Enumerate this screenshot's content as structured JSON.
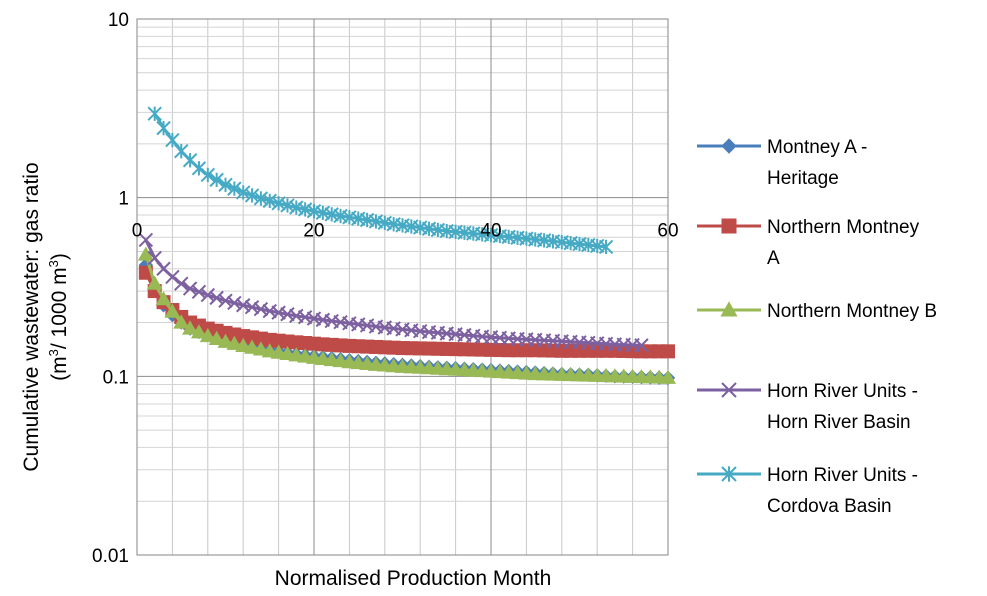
{
  "chart_data": {
    "type": "line",
    "title": "",
    "xlabel": "Normalised Production Month",
    "ylabel_line1": "Cumulative wastewater: gas ratio",
    "ylabel_line2": {
      "pre": "(m",
      "sup1": "3",
      "mid": "/ 1000 m",
      "sup2": "3",
      "post": ")"
    },
    "xlim": [
      0,
      60
    ],
    "ylim": [
      0.01,
      10
    ],
    "yscale": "log",
    "grid": true,
    "legend_position": "right",
    "x_ticks": [
      0,
      20,
      40,
      60
    ],
    "y_ticks": [
      0.01,
      0.1,
      1,
      10
    ],
    "x_tick_labels": [
      "0",
      "20",
      "40",
      "60"
    ],
    "y_tick_labels": [
      "0.01",
      "0.1",
      "1",
      "10"
    ],
    "series": [
      {
        "name_lines": [
          "Montney A -",
          "Heritage"
        ],
        "color": "#4a7ebb",
        "marker": "diamond",
        "x": [
          1,
          2,
          3,
          4,
          5,
          6,
          8,
          10,
          12,
          15,
          18,
          21,
          24,
          27,
          30,
          33,
          36,
          39,
          42,
          45,
          48,
          51,
          54,
          57,
          60
        ],
        "y": [
          0.42,
          0.31,
          0.25,
          0.22,
          0.2,
          0.185,
          0.17,
          0.16,
          0.15,
          0.14,
          0.133,
          0.128,
          0.123,
          0.119,
          0.116,
          0.113,
          0.111,
          0.109,
          0.107,
          0.105,
          0.103,
          0.102,
          0.1,
          0.099,
          0.098
        ]
      },
      {
        "name_lines": [
          "Northern Montney",
          "A"
        ],
        "color": "#be4b48",
        "marker": "square",
        "x": [
          1,
          2,
          3,
          4,
          5,
          6,
          8,
          10,
          12,
          15,
          18,
          21,
          24,
          27,
          30,
          33,
          36,
          39,
          42,
          45,
          48,
          51,
          54,
          57,
          60
        ],
        "y": [
          0.38,
          0.3,
          0.26,
          0.235,
          0.215,
          0.2,
          0.185,
          0.175,
          0.168,
          0.16,
          0.155,
          0.151,
          0.148,
          0.146,
          0.144,
          0.143,
          0.142,
          0.141,
          0.14,
          0.14,
          0.139,
          0.139,
          0.139,
          0.138,
          0.138
        ]
      },
      {
        "name_lines": [
          "Northern Montney B"
        ],
        "color": "#98b954",
        "marker": "triangle",
        "x": [
          1,
          2,
          3,
          4,
          5,
          6,
          8,
          10,
          12,
          15,
          18,
          21,
          24,
          27,
          30,
          33,
          36,
          39,
          42,
          45,
          48,
          51,
          54,
          57,
          60
        ],
        "y": [
          0.48,
          0.33,
          0.27,
          0.23,
          0.2,
          0.185,
          0.168,
          0.156,
          0.148,
          0.138,
          0.131,
          0.125,
          0.12,
          0.116,
          0.113,
          0.111,
          0.109,
          0.107,
          0.105,
          0.103,
          0.102,
          0.101,
          0.1,
          0.099,
          0.098
        ]
      },
      {
        "name_lines": [
          "Horn River Units -",
          "Horn River Basin"
        ],
        "color": "#7d60a0",
        "marker": "x",
        "x": [
          1,
          2,
          3,
          4,
          5,
          6,
          8,
          10,
          12,
          15,
          18,
          21,
          24,
          27,
          30,
          33,
          36,
          39,
          42,
          45,
          48,
          51,
          54,
          57
        ],
        "y": [
          0.58,
          0.46,
          0.4,
          0.36,
          0.33,
          0.31,
          0.285,
          0.265,
          0.25,
          0.232,
          0.218,
          0.207,
          0.198,
          0.19,
          0.183,
          0.177,
          0.172,
          0.167,
          0.163,
          0.16,
          0.157,
          0.154,
          0.151,
          0.149
        ]
      },
      {
        "name_lines": [
          "Horn River Units -",
          "Cordova Basin"
        ],
        "color": "#46aac5",
        "marker": "star",
        "x": [
          2,
          3,
          4,
          5,
          6,
          7,
          8,
          10,
          12,
          14,
          16,
          18,
          20,
          23,
          26,
          29,
          32,
          35,
          38,
          41,
          44,
          47,
          50,
          53
        ],
        "y": [
          2.95,
          2.45,
          2.1,
          1.82,
          1.62,
          1.46,
          1.34,
          1.18,
          1.07,
          0.99,
          0.93,
          0.88,
          0.84,
          0.79,
          0.75,
          0.71,
          0.68,
          0.65,
          0.63,
          0.61,
          0.59,
          0.57,
          0.55,
          0.53
        ]
      }
    ]
  }
}
